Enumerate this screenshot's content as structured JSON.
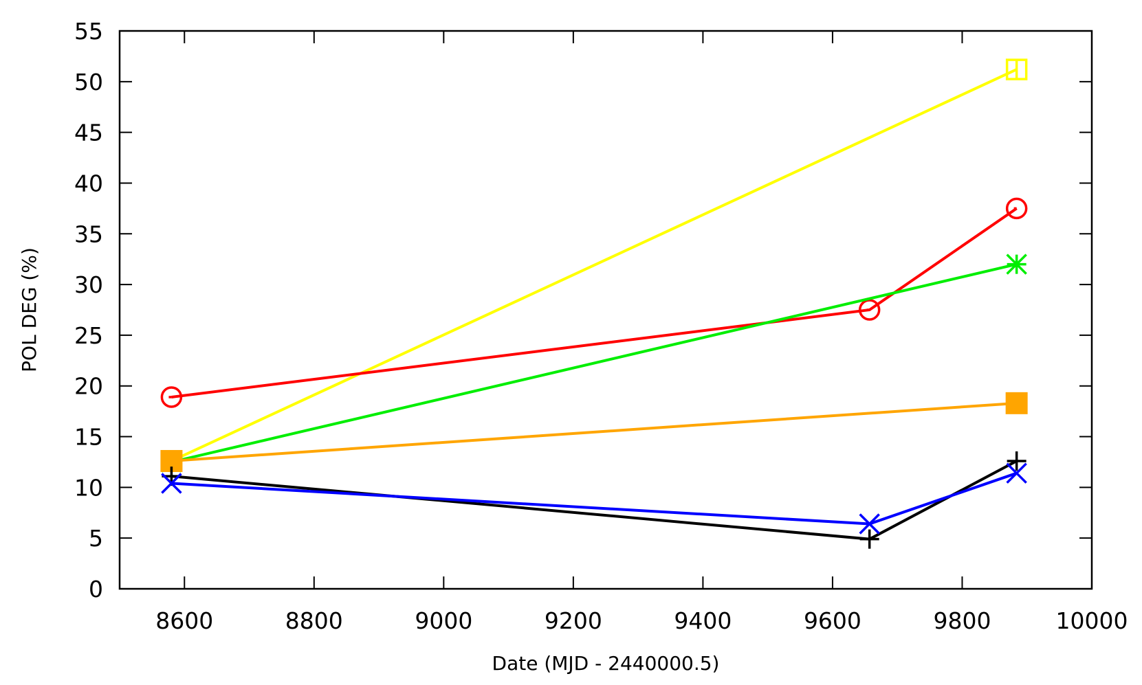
{
  "chart_data": {
    "type": "line",
    "title": "",
    "xlabel": "Date (MJD - 2440000.5)",
    "ylabel": "POL DEG (%)",
    "xlim": [
      8500,
      10000
    ],
    "ylim": [
      0,
      55
    ],
    "x_ticks": [
      8600,
      8800,
      9000,
      9200,
      9400,
      9600,
      9800,
      10000
    ],
    "y_ticks": [
      0,
      5,
      10,
      15,
      20,
      25,
      30,
      35,
      40,
      45,
      50,
      55
    ],
    "grid": false,
    "legend": null,
    "series": [
      {
        "name": "yellow-open-square",
        "color": "#ffff00",
        "marker": "open-square",
        "x": [
          8580,
          9884
        ],
        "y": [
          12.6,
          51.2
        ]
      },
      {
        "name": "red-open-circle",
        "color": "#ff0000",
        "marker": "open-circle",
        "x": [
          8580,
          9657,
          9884
        ],
        "y": [
          18.9,
          27.5,
          37.5
        ]
      },
      {
        "name": "green-asterisk",
        "color": "#00ee00",
        "marker": "asterisk",
        "x": [
          8580,
          9884
        ],
        "y": [
          12.5,
          32.0
        ]
      },
      {
        "name": "orange-filled-square",
        "color": "#ffa500",
        "marker": "filled-square",
        "x": [
          8580,
          9884
        ],
        "y": [
          12.6,
          18.3
        ]
      },
      {
        "name": "black-plus",
        "color": "#000000",
        "marker": "plus",
        "x": [
          8580,
          9657,
          9884
        ],
        "y": [
          11.1,
          4.9,
          12.6
        ]
      },
      {
        "name": "blue-cross",
        "color": "#0000ff",
        "marker": "cross",
        "x": [
          8580,
          9657,
          9884
        ],
        "y": [
          10.4,
          6.4,
          11.4
        ]
      }
    ]
  }
}
